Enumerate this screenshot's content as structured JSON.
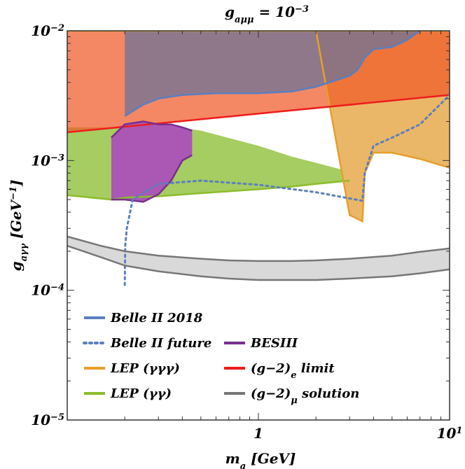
{
  "chart_data": {
    "type": "area",
    "title": "g_{aμμ} = 10^{-3}",
    "xlabel": "m_a [GeV]",
    "ylabel": "g_{aγγ} [GeV^{-1}]",
    "x_scale": "log",
    "y_scale": "log",
    "xlim": [
      0.1,
      10
    ],
    "ylim": [
      1e-05,
      0.01
    ],
    "x_ticks": [
      {
        "value": 1,
        "label": "1"
      },
      {
        "value": 10,
        "label": "10^1"
      }
    ],
    "y_ticks": [
      {
        "value": 0.01,
        "base": "10",
        "exp": "−2"
      },
      {
        "value": 0.001,
        "base": "10",
        "exp": "−3"
      },
      {
        "value": 0.0001,
        "base": "10",
        "exp": "−4"
      },
      {
        "value": 1e-05,
        "base": "10",
        "exp": "−5"
      }
    ],
    "legend_placement": "bottom-left",
    "legend": [
      {
        "label": "Belle II 2018",
        "color": "#5b7fbd",
        "style": "solid",
        "col": 0,
        "row": 0
      },
      {
        "label": "Belle II  future",
        "color": "#5b7fbd",
        "style": "dotted",
        "col": 0,
        "row": 1
      },
      {
        "label": "BESIII",
        "color": "#7a2d8f",
        "style": "solid",
        "col": 1,
        "row": 1
      },
      {
        "label": "LEP (γγγ)",
        "color": "#e69f2a",
        "style": "solid",
        "col": 0,
        "row": 2
      },
      {
        "label": "(g−2)_e limit",
        "color": "#ee1c1c",
        "style": "solid",
        "col": 1,
        "row": 2
      },
      {
        "label": "LEP (γγ)",
        "color": "#8cbc2c",
        "style": "solid",
        "col": 0,
        "row": 3
      },
      {
        "label": "(g−2)_μ solution",
        "color": "#777777",
        "style": "solid",
        "col": 1,
        "row": 3
      }
    ],
    "series": [
      {
        "name": "LEP (γγ)",
        "kind": "region_below_top",
        "color": "#8cbc2c",
        "fill": "#a5cd61",
        "x": [
          0.1,
          0.17,
          0.21,
          0.3,
          0.5,
          1.0,
          1.5,
          2.0,
          3.0
        ],
        "y_lower": [
          0.00054,
          0.0005,
          0.00052,
          0.00053,
          0.00056,
          0.0006,
          0.00063,
          0.00066,
          0.0007
        ],
        "y_upper": [
          0.0018,
          0.0018,
          0.0019,
          0.0019,
          0.0017,
          0.0013,
          0.00107,
          0.00096,
          0.00082
        ]
      },
      {
        "name": "LEP (γγγ)",
        "kind": "band",
        "color": "#e69f2a",
        "fill": "#eab768",
        "x": [
          0.1,
          0.15,
          0.17,
          0.2,
          0.25,
          0.3,
          0.4,
          0.5,
          0.7,
          1.0,
          1.5,
          2.0,
          3.0,
          3.5,
          3.6,
          4.0,
          5.0,
          7.0,
          10.0
        ],
        "y_lower": [
          0.01,
          0.01,
          0.01,
          0.01,
          0.01,
          0.01,
          0.01,
          0.01,
          0.01,
          0.01,
          0.01,
          0.01,
          0.00038,
          0.00034,
          0.0008,
          0.00115,
          0.00115,
          0.00103,
          0.00088
        ],
        "y_upper": [
          0.01,
          0.01,
          0.01,
          0.01,
          0.01,
          0.01,
          0.01,
          0.01,
          0.01,
          0.01,
          0.01,
          0.01,
          0.01,
          0.01,
          0.01,
          0.01,
          0.01,
          0.01,
          0.01
        ]
      },
      {
        "name": "(g−2)_e limit",
        "kind": "region_above_line",
        "color": "#ee1c1c",
        "fill": "rgba(240,90,40,0.72)",
        "x": [
          0.1,
          10.0
        ],
        "y": [
          0.00165,
          0.0032
        ]
      },
      {
        "name": "BESIII",
        "kind": "islands",
        "color": "#7a2d8f",
        "fill": "#aa58b3",
        "x": [
          0.17,
          0.2,
          0.25,
          0.3,
          0.35,
          0.4,
          0.45
        ],
        "y_lower": [
          0.0005,
          0.0005,
          0.00048,
          0.00055,
          0.0007,
          0.001,
          0.0011
        ],
        "y_upper": [
          0.0015,
          0.0019,
          0.002,
          0.0019,
          0.0019,
          0.0018,
          0.0017
        ]
      },
      {
        "name": "Belle II 2018",
        "kind": "region_above_line",
        "color": "#5b7fbd",
        "fill": "rgba(115,115,150,0.78)",
        "x": [
          0.2,
          0.25,
          0.3,
          0.4,
          0.6,
          1.0,
          1.5,
          2.0,
          3.0,
          3.3,
          3.6,
          4.0,
          5.0,
          6.0,
          7.0
        ],
        "y": [
          0.0022,
          0.0027,
          0.003,
          0.0032,
          0.0033,
          0.0033,
          0.0034,
          0.0037,
          0.0045,
          0.005,
          0.0062,
          0.0072,
          0.0075,
          0.0085,
          0.01
        ]
      },
      {
        "name": "Belle II  future",
        "kind": "line",
        "color": "#5b7fbd",
        "style": "dotted",
        "x": [
          0.2,
          0.201,
          0.205,
          0.22,
          0.3,
          0.5,
          1.0,
          2.0,
          3.0,
          3.5,
          3.6,
          4.0,
          5.0,
          7.0,
          10.0
        ],
        "y": [
          0.00011,
          0.00022,
          0.0003,
          0.0005,
          0.00066,
          0.0007,
          0.00065,
          0.00057,
          0.00051,
          0.00049,
          0.0008,
          0.0013,
          0.0015,
          0.0019,
          0.0032
        ]
      },
      {
        "name": "(g−2)_μ solution",
        "kind": "band",
        "color": "#777777",
        "fill": "#d9d9d9",
        "x": [
          0.1,
          0.15,
          0.2,
          0.3,
          0.5,
          0.7,
          1.0,
          1.5,
          2.0,
          3.0,
          5.0,
          7.0,
          10.0
        ],
        "y_lower": [
          0.00022,
          0.00018,
          0.000155,
          0.00014,
          0.000128,
          0.000123,
          0.00012,
          0.00012,
          0.00012,
          0.000123,
          0.000128,
          0.000135,
          0.000145
        ],
        "y_upper": [
          0.00026,
          0.00022,
          0.0002,
          0.000185,
          0.000175,
          0.00017,
          0.000168,
          0.000168,
          0.00017,
          0.000175,
          0.000185,
          0.000198,
          0.00021
        ]
      }
    ]
  }
}
